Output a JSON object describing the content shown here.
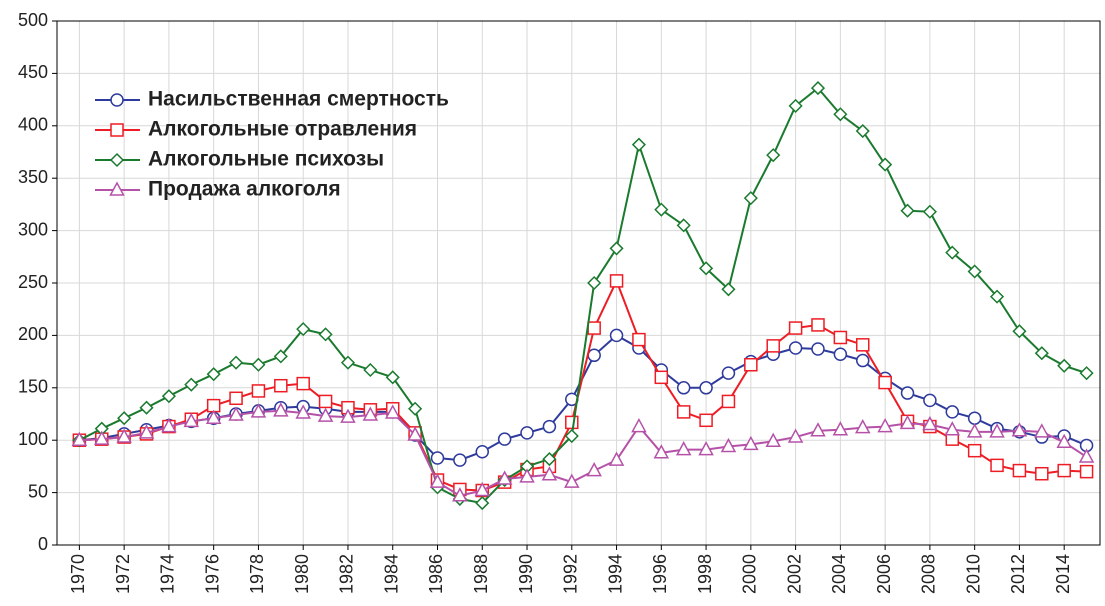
{
  "chart_data": {
    "type": "line",
    "x": [
      1970,
      1971,
      1972,
      1973,
      1974,
      1975,
      1976,
      1977,
      1978,
      1979,
      1980,
      1981,
      1982,
      1983,
      1984,
      1985,
      1986,
      1987,
      1988,
      1989,
      1990,
      1991,
      1992,
      1993,
      1994,
      1995,
      1996,
      1997,
      1998,
      1999,
      2000,
      2001,
      2002,
      2003,
      2004,
      2005,
      2006,
      2007,
      2008,
      2009,
      2010,
      2011,
      2012,
      2013,
      2014,
      2015
    ],
    "xlim": [
      1969,
      2015.6
    ],
    "xticks": [
      1970,
      1972,
      1974,
      1976,
      1978,
      1980,
      1982,
      1984,
      1986,
      1988,
      1990,
      1992,
      1994,
      1996,
      1998,
      2000,
      2002,
      2004,
      2006,
      2008,
      2010,
      2012,
      2014
    ],
    "ylim": [
      0,
      500
    ],
    "yticks": [
      0,
      50,
      100,
      150,
      200,
      250,
      300,
      350,
      400,
      450,
      500
    ],
    "grid": true,
    "legend": "upper left",
    "series": [
      {
        "name": "Насильственная смертность",
        "color": "#2e3b9c",
        "marker": "circle",
        "values": [
          100,
          102,
          106,
          110,
          114,
          118,
          121,
          125,
          128,
          131,
          132,
          130,
          127,
          127,
          127,
          105,
          83,
          81,
          89,
          101,
          107,
          113,
          139,
          181,
          200,
          188,
          167,
          150,
          150,
          164,
          175,
          182,
          188,
          187,
          182,
          176,
          159,
          145,
          138,
          127,
          121,
          111,
          108,
          103,
          104,
          95
        ]
      },
      {
        "name": "Алкогольные отравления",
        "color": "#ee1c24",
        "marker": "square",
        "values": [
          100,
          101,
          103,
          106,
          113,
          120,
          133,
          140,
          147,
          152,
          154,
          137,
          131,
          129,
          130,
          107,
          62,
          53,
          52,
          60,
          72,
          75,
          117,
          207,
          252,
          196,
          160,
          127,
          119,
          137,
          172,
          190,
          207,
          210,
          198,
          191,
          155,
          118,
          113,
          101,
          90,
          76,
          71,
          68,
          71,
          70
        ]
      },
      {
        "name": "Алкогольные психозы",
        "color": "#1a7a2e",
        "marker": "diamond",
        "values": [
          100,
          111,
          121,
          131,
          142,
          153,
          163,
          174,
          172,
          180,
          206,
          201,
          174,
          167,
          160,
          130,
          55,
          44,
          40,
          62,
          75,
          82,
          104,
          250,
          283,
          382,
          320,
          305,
          264,
          244,
          331,
          372,
          419,
          436,
          411,
          395,
          363,
          319,
          318,
          279,
          261,
          237,
          204,
          183,
          171,
          164
        ]
      },
      {
        "name": "Продажа алкоголя",
        "color": "#b552a8",
        "marker": "triangle",
        "values": [
          100,
          101,
          103,
          107,
          113,
          118,
          121,
          124,
          127,
          128,
          126,
          123,
          122,
          124,
          126,
          105,
          60,
          47,
          52,
          63,
          65,
          67,
          60,
          71,
          81,
          113,
          88,
          91,
          91,
          94,
          96,
          99,
          103,
          109,
          110,
          112,
          113,
          116,
          115,
          110,
          108,
          108,
          109,
          108,
          98,
          84
        ]
      }
    ]
  }
}
